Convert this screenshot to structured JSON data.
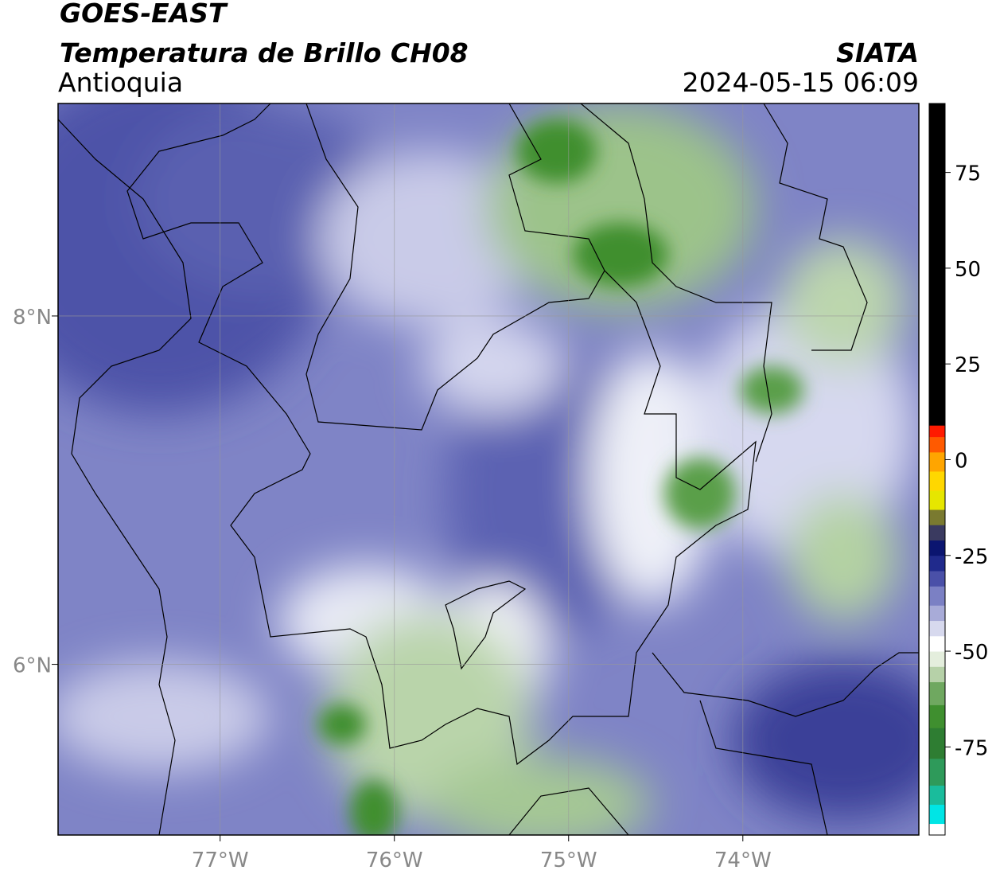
{
  "header": {
    "title": "GOES-EAST",
    "subtitle": "Temperatura de Brillo CH08",
    "region": "Antioquia",
    "source": "SIATA",
    "timestamp": "2024-05-15 06:09"
  },
  "map": {
    "xlim": [
      -77.93,
      -72.99
    ],
    "ylim": [
      5.02,
      9.22
    ],
    "xticks": [
      {
        "value": -77,
        "label": "77°W"
      },
      {
        "value": -76,
        "label": "76°W"
      },
      {
        "value": -75,
        "label": "75°W"
      },
      {
        "value": -74,
        "label": "74°W"
      }
    ],
    "yticks": [
      {
        "value": 6,
        "label": "6°N"
      },
      {
        "value": 8,
        "label": "8°N"
      }
    ],
    "grid": true
  },
  "colorbar": {
    "lim": [
      -98,
      93
    ],
    "ticks": [
      -75,
      -50,
      -25,
      0,
      25,
      50,
      75
    ],
    "stops": [
      {
        "value": -98,
        "color": "#ffffff"
      },
      {
        "value": -95,
        "color": "#00e5e5"
      },
      {
        "value": -90,
        "color": "#1abc9c"
      },
      {
        "value": -85,
        "color": "#2e9a5a"
      },
      {
        "value": -78,
        "color": "#2e7d32"
      },
      {
        "value": -70,
        "color": "#3f8f2f"
      },
      {
        "value": -64,
        "color": "#6fa860"
      },
      {
        "value": -58,
        "color": "#b6d1a8"
      },
      {
        "value": -54,
        "color": "#e4eedd"
      },
      {
        "value": -50,
        "color": "#ffffff"
      },
      {
        "value": -46,
        "color": "#d7d9ee"
      },
      {
        "value": -42,
        "color": "#a8abd8"
      },
      {
        "value": -38,
        "color": "#7b80c4"
      },
      {
        "value": -33,
        "color": "#4a50a8"
      },
      {
        "value": -29,
        "color": "#202a8c"
      },
      {
        "value": -25,
        "color": "#0b1570"
      },
      {
        "value": -21,
        "color": "#3a3a60"
      },
      {
        "value": -17,
        "color": "#7a7a30"
      },
      {
        "value": -13,
        "color": "#e6e600"
      },
      {
        "value": -8,
        "color": "#ffd700"
      },
      {
        "value": -3,
        "color": "#ffa500"
      },
      {
        "value": 2,
        "color": "#ff5a00"
      },
      {
        "value": 6,
        "color": "#ff1a00"
      },
      {
        "value": 9,
        "color": "#000000"
      }
    ]
  }
}
